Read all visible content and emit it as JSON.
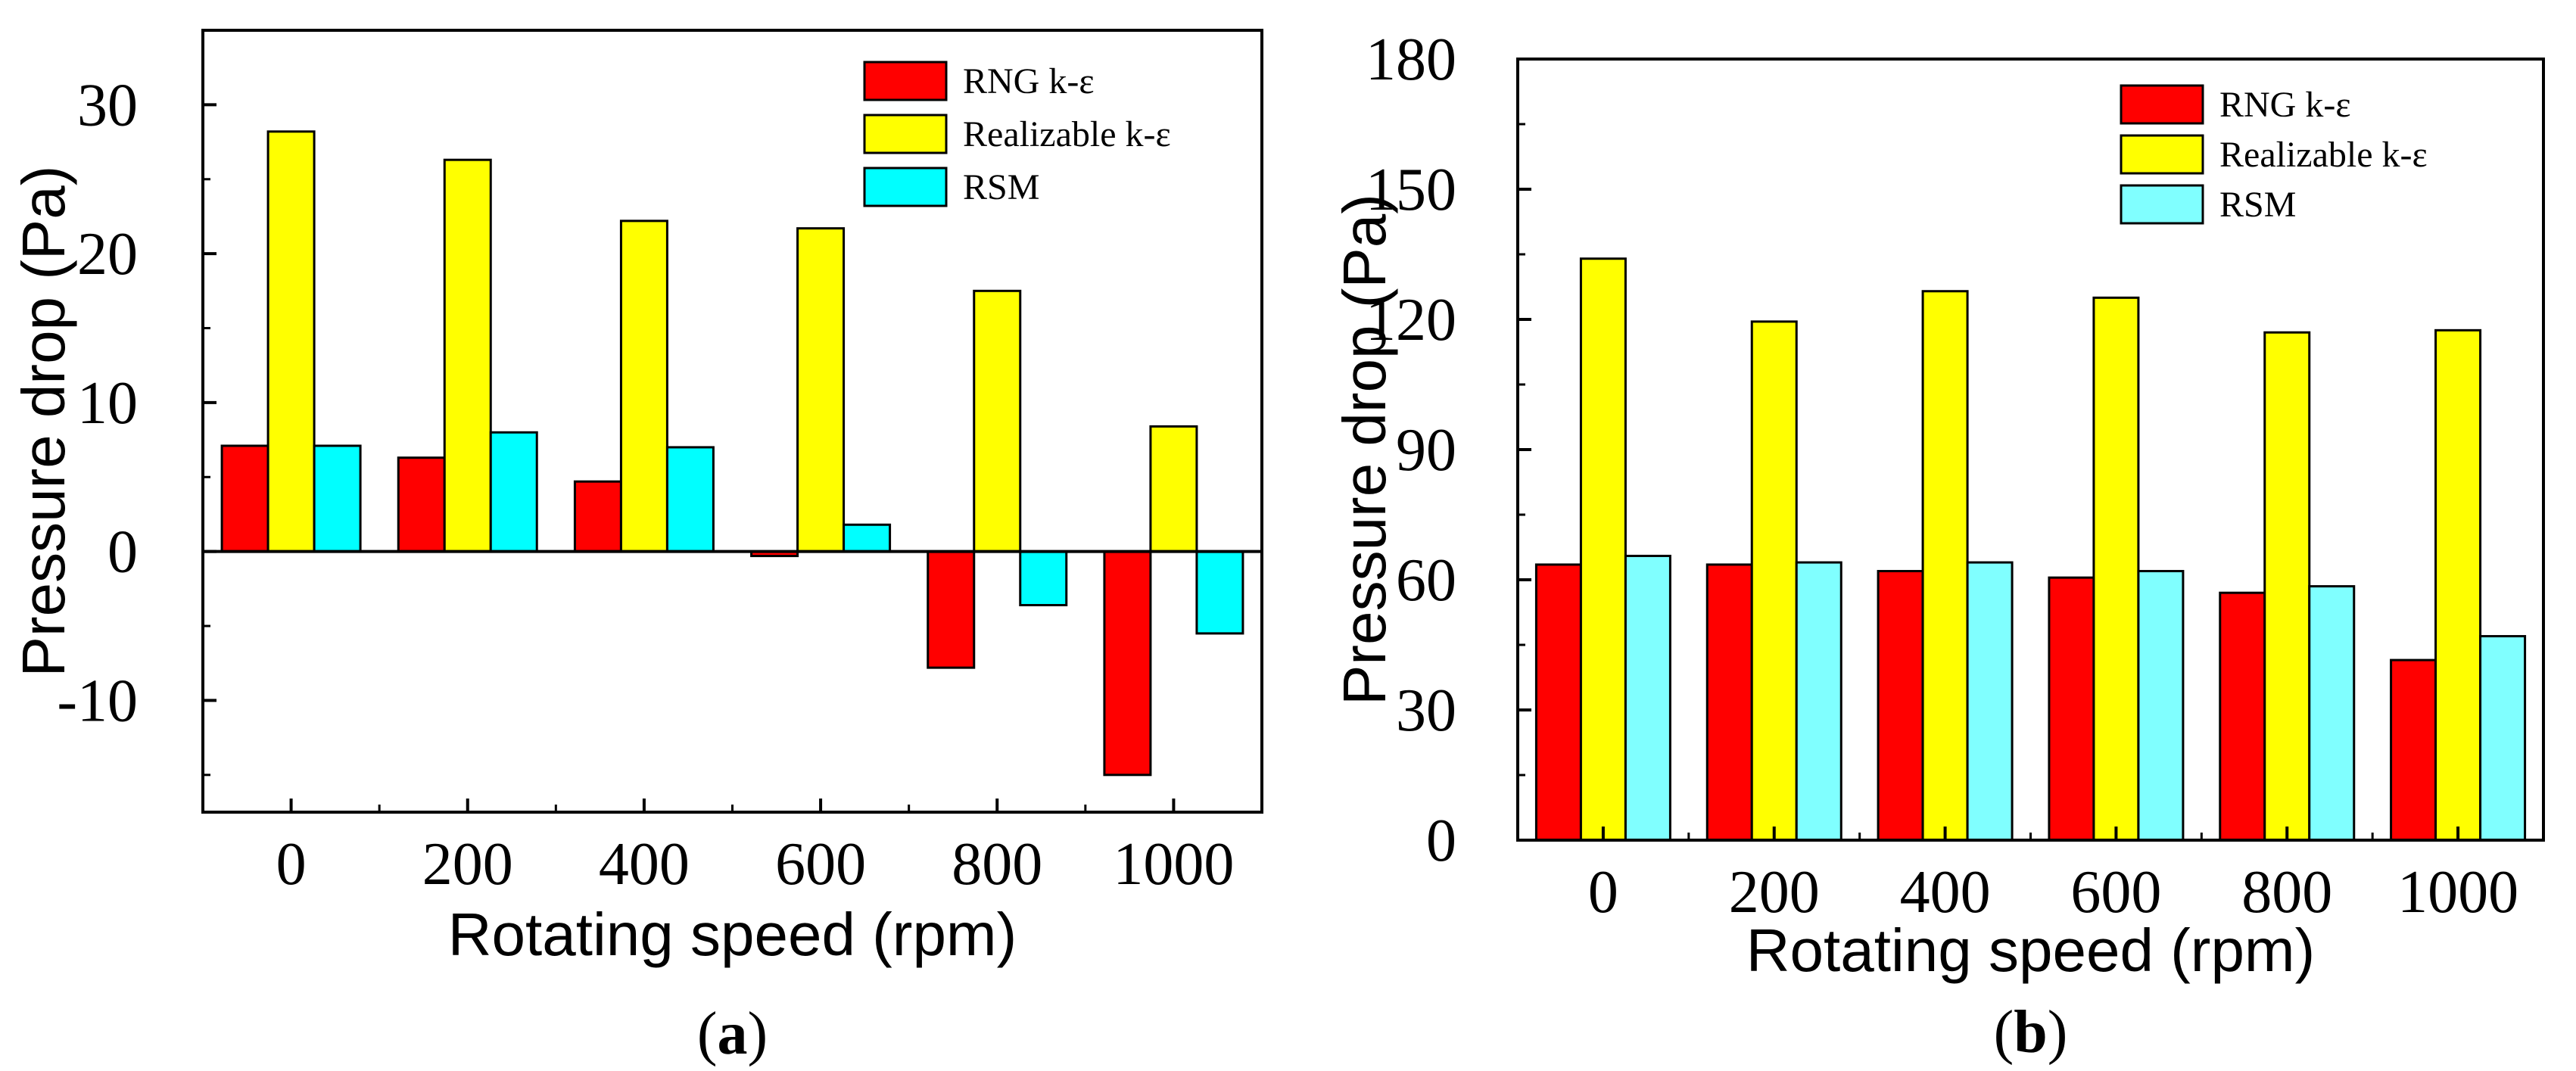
{
  "chart_data": [
    {
      "type": "bar",
      "panel_label": {
        "open": "(",
        "letter": "a",
        "close": ")"
      },
      "title": "",
      "xlabel": "Rotating speed (rpm)",
      "ylabel": "Pressure drop (Pa)",
      "categories": [
        "0",
        "200",
        "400",
        "600",
        "800",
        "1000"
      ],
      "ylim": [
        -17.5,
        35
      ],
      "yticks": [
        -10,
        0,
        10,
        20,
        30
      ],
      "zero_line": true,
      "legend_position": "top-right",
      "series": [
        {
          "name": "RNG k-ε",
          "color": "#ff0000",
          "values": [
            7.1,
            6.3,
            4.7,
            -0.3,
            -7.8,
            -15.0
          ]
        },
        {
          "name": "Realizable k-ε",
          "color": "#ffff00",
          "values": [
            28.2,
            26.3,
            22.2,
            21.7,
            17.5,
            8.4
          ]
        },
        {
          "name": "RSM",
          "color": "#00ffff",
          "values": [
            7.1,
            8.0,
            7.0,
            1.8,
            -3.6,
            -5.5
          ]
        }
      ]
    },
    {
      "type": "bar",
      "panel_label": {
        "open": "(",
        "letter": "b",
        "close": ")"
      },
      "title": "",
      "xlabel": "Rotating speed (rpm)",
      "ylabel": "Pressure drop (Pa)",
      "categories": [
        "0",
        "200",
        "400",
        "600",
        "800",
        "1000"
      ],
      "ylim": [
        0,
        180
      ],
      "yticks": [
        0,
        30,
        60,
        90,
        120,
        150,
        180
      ],
      "zero_line": false,
      "legend_position": "top-right",
      "series": [
        {
          "name": "RNG k-ε",
          "color": "#ff0000",
          "values": [
            63.5,
            63.5,
            62.0,
            60.5,
            57.0,
            41.5
          ]
        },
        {
          "name": "Realizable k-ε",
          "color": "#ffff00",
          "values": [
            134.0,
            119.5,
            126.5,
            125.0,
            117.0,
            117.5
          ]
        },
        {
          "name": "RSM",
          "color": "#80ffff",
          "values": [
            65.5,
            64.0,
            64.0,
            62.0,
            58.5,
            47.0
          ]
        }
      ]
    }
  ]
}
